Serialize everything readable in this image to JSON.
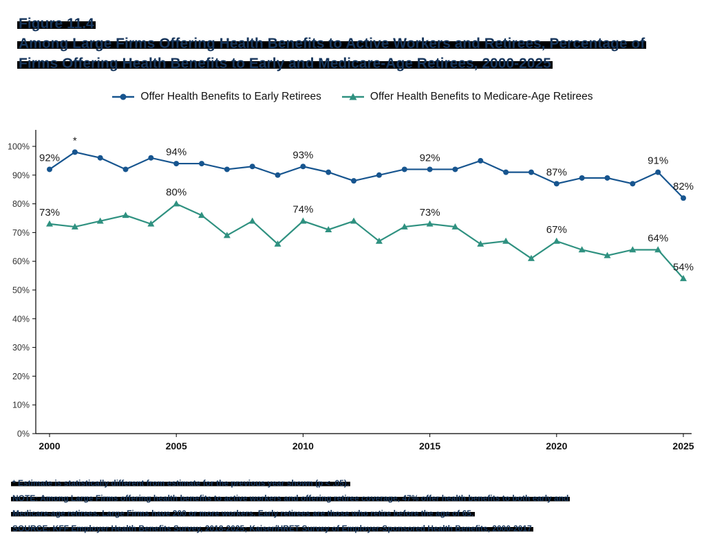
{
  "figure": {
    "label": "Figure 11.4",
    "title_line1": "Among Large Firms Offering Health Benefits to Active Workers and Retirees, Percentage of",
    "title_line2": "Firms Offering Health Benefits to Early and Medicare-Age Retirees, 2000-2025"
  },
  "chart_data": {
    "type": "line",
    "title": "Among Large Firms Offering Health Benefits to Active Workers and Retirees, Percentage of Firms Offering Health Benefits to Early and Medicare-Age Retirees, 2000-2025",
    "x": [
      2000,
      2001,
      2002,
      2003,
      2004,
      2005,
      2006,
      2007,
      2008,
      2009,
      2010,
      2011,
      2012,
      2013,
      2014,
      2015,
      2016,
      2017,
      2018,
      2019,
      2020,
      2021,
      2022,
      2023,
      2024,
      2025
    ],
    "xticks": [
      2000,
      2005,
      2010,
      2015,
      2020,
      2025
    ],
    "ylim": [
      0,
      100
    ],
    "ytick_step": 10,
    "grid": false,
    "legend_position": "top",
    "series": [
      {
        "name": "Offer Health Benefits to Early Retirees",
        "color": "#17558f",
        "marker": "circle",
        "values": [
          92,
          98,
          96,
          92,
          96,
          94,
          94,
          92,
          93,
          90,
          93,
          91,
          88,
          90,
          92,
          92,
          92,
          95,
          91,
          91,
          87,
          89,
          89,
          87,
          91,
          82
        ]
      },
      {
        "name": "Offer Health Benefits to Medicare-Age Retirees",
        "color": "#2f9180",
        "marker": "triangle",
        "values": [
          73,
          72,
          74,
          76,
          73,
          80,
          76,
          69,
          74,
          66,
          74,
          71,
          74,
          67,
          72,
          73,
          72,
          66,
          67,
          61,
          67,
          64,
          62,
          64,
          64,
          54
        ]
      }
    ],
    "annotations": [
      {
        "series": 0,
        "year": 2000,
        "label": "92%"
      },
      {
        "series": 0,
        "year": 2001,
        "label": "*"
      },
      {
        "series": 0,
        "year": 2005,
        "label": "94%"
      },
      {
        "series": 0,
        "year": 2010,
        "label": "93%"
      },
      {
        "series": 0,
        "year": 2015,
        "label": "92%"
      },
      {
        "series": 0,
        "year": 2020,
        "label": "87%"
      },
      {
        "series": 0,
        "year": 2024,
        "label": "91%"
      },
      {
        "series": 0,
        "year": 2025,
        "label": "82%"
      },
      {
        "series": 1,
        "year": 2000,
        "label": "73%"
      },
      {
        "series": 1,
        "year": 2005,
        "label": "80%"
      },
      {
        "series": 1,
        "year": 2010,
        "label": "74%"
      },
      {
        "series": 1,
        "year": 2015,
        "label": "73%"
      },
      {
        "series": 1,
        "year": 2020,
        "label": "67%"
      },
      {
        "series": 1,
        "year": 2024,
        "label": "64%"
      },
      {
        "series": 1,
        "year": 2025,
        "label": "54%"
      }
    ]
  },
  "footnotes": {
    "line1": "* Estimate is statistically different from estimate for the previous year shown (p < .05).",
    "line2": "NOTE: Among Large Firms offering health benefits to active workers and offering retiree coverage, 47% offer health benefits to both early and",
    "line3": "Medicare-age retirees. Large Firms have 200 or more workers. Early retirees are those who retire before the age of 65.",
    "line4": "SOURCE: KFF Employer Health Benefits Survey, 2018-2025; Kaiser/HRET Survey of Employer-Sponsored Health Benefits, 2000-2017"
  }
}
